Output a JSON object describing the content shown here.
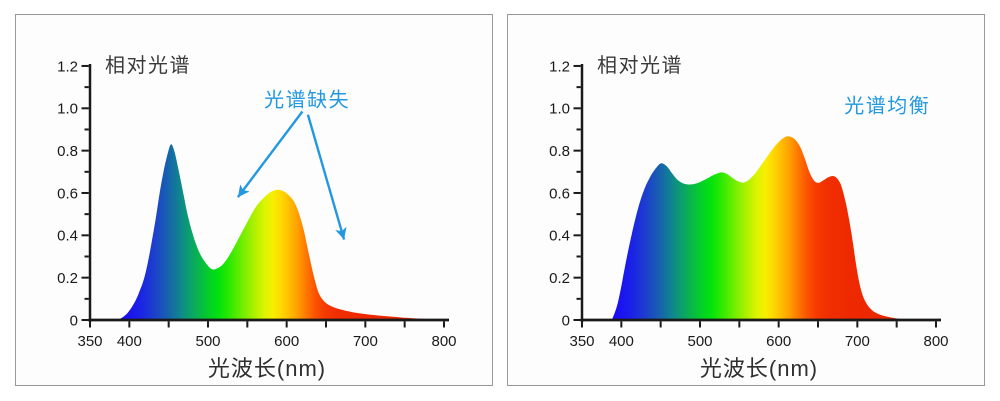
{
  "page": {
    "background": "#ffffff",
    "panel_background": "#fdfdfd",
    "panel_border": "#999999"
  },
  "axis": {
    "color": "#1a1a1a",
    "tick_label_color": "#1a1a1a",
    "tick_label_size": 15
  },
  "text": {
    "title_color": "#3a3a3a",
    "annotation_color": "#2298e0"
  },
  "spectrum_gradient": [
    {
      "wl": 350,
      "color": "#2004f8"
    },
    {
      "wl": 392,
      "color": "#1b0cf2"
    },
    {
      "wl": 412,
      "color": "#1b20e8"
    },
    {
      "wl": 432,
      "color": "#1c40cc"
    },
    {
      "wl": 452,
      "color": "#1668a8"
    },
    {
      "wl": 468,
      "color": "#0e8e84"
    },
    {
      "wl": 483,
      "color": "#09ac5a"
    },
    {
      "wl": 498,
      "color": "#05c930"
    },
    {
      "wl": 513,
      "color": "#01e20e"
    },
    {
      "wl": 528,
      "color": "#30e900"
    },
    {
      "wl": 544,
      "color": "#72ee00"
    },
    {
      "wl": 559,
      "color": "#aef000"
    },
    {
      "wl": 572,
      "color": "#dcf400"
    },
    {
      "wl": 583,
      "color": "#f8ee00"
    },
    {
      "wl": 593,
      "color": "#ffd800"
    },
    {
      "wl": 603,
      "color": "#ffbe00"
    },
    {
      "wl": 613,
      "color": "#ffa200"
    },
    {
      "wl": 623,
      "color": "#ff7e00"
    },
    {
      "wl": 635,
      "color": "#fc5600"
    },
    {
      "wl": 648,
      "color": "#f63a00"
    },
    {
      "wl": 663,
      "color": "#f12e00"
    },
    {
      "wl": 690,
      "color": "#ee2900"
    },
    {
      "wl": 800,
      "color": "#e82400"
    }
  ],
  "chart_data": [
    {
      "type": "area",
      "title": "相对光谱",
      "xlabel": "光波长(nm)",
      "xlim": [
        350,
        800
      ],
      "ylim": [
        0,
        1.2
      ],
      "x_tick_step": 50,
      "x_tick_labels": [
        350,
        400,
        500,
        600,
        700,
        800
      ],
      "y_tick_step_minor": 0.1,
      "y_tick_labels": [
        "0",
        "0.2",
        "0.4",
        "0.6",
        "0.8",
        "1.0",
        "1.2"
      ],
      "annotation": {
        "text": "光谱缺失",
        "x": 626,
        "y": 1.05
      },
      "arrows": [
        {
          "from": [
            620,
            0.985
          ],
          "to": [
            538,
            0.58
          ]
        },
        {
          "from": [
            627,
            0.97
          ],
          "to": [
            673,
            0.38
          ]
        }
      ],
      "points": [
        [
          385,
          0
        ],
        [
          391,
          0.012
        ],
        [
          397,
          0.03
        ],
        [
          403,
          0.06
        ],
        [
          409,
          0.1
        ],
        [
          414,
          0.145
        ],
        [
          419,
          0.2
        ],
        [
          424,
          0.28
        ],
        [
          429,
          0.38
        ],
        [
          434,
          0.49
        ],
        [
          439,
          0.61
        ],
        [
          444,
          0.71
        ],
        [
          449,
          0.79
        ],
        [
          453,
          0.83
        ],
        [
          457,
          0.8
        ],
        [
          462,
          0.72
        ],
        [
          468,
          0.61
        ],
        [
          474,
          0.5
        ],
        [
          481,
          0.4
        ],
        [
          489,
          0.32
        ],
        [
          497,
          0.27
        ],
        [
          505,
          0.24
        ],
        [
          513,
          0.246
        ],
        [
          521,
          0.272
        ],
        [
          531,
          0.33
        ],
        [
          541,
          0.4
        ],
        [
          551,
          0.47
        ],
        [
          561,
          0.535
        ],
        [
          571,
          0.578
        ],
        [
          580,
          0.605
        ],
        [
          588,
          0.615
        ],
        [
          596,
          0.608
        ],
        [
          604,
          0.585
        ],
        [
          610,
          0.555
        ],
        [
          616,
          0.5
        ],
        [
          622,
          0.42
        ],
        [
          628,
          0.315
        ],
        [
          634,
          0.215
        ],
        [
          640,
          0.135
        ],
        [
          646,
          0.095
        ],
        [
          653,
          0.072
        ],
        [
          662,
          0.057
        ],
        [
          675,
          0.044
        ],
        [
          692,
          0.032
        ],
        [
          712,
          0.023
        ],
        [
          735,
          0.015
        ],
        [
          760,
          0.008
        ],
        [
          782,
          0.004
        ],
        [
          800,
          0.001
        ]
      ]
    },
    {
      "type": "area",
      "title": "相对光谱",
      "xlabel": "光波长(nm)",
      "xlim": [
        350,
        800
      ],
      "ylim": [
        0,
        1.2
      ],
      "x_tick_step": 50,
      "x_tick_labels": [
        350,
        400,
        500,
        600,
        700,
        800
      ],
      "y_tick_step_minor": 0.1,
      "y_tick_labels": [
        "0",
        "0.2",
        "0.4",
        "0.6",
        "0.8",
        "1.0",
        "1.2"
      ],
      "annotation": {
        "text": "光谱均衡",
        "x": 738,
        "y": 1.02
      },
      "arrows": [],
      "points": [
        [
          388,
          0
        ],
        [
          394,
          0.06
        ],
        [
          399,
          0.14
        ],
        [
          404,
          0.24
        ],
        [
          410,
          0.35
        ],
        [
          416,
          0.45
        ],
        [
          423,
          0.55
        ],
        [
          430,
          0.625
        ],
        [
          438,
          0.685
        ],
        [
          445,
          0.722
        ],
        [
          451,
          0.74
        ],
        [
          458,
          0.725
        ],
        [
          465,
          0.69
        ],
        [
          472,
          0.66
        ],
        [
          479,
          0.645
        ],
        [
          487,
          0.64
        ],
        [
          495,
          0.645
        ],
        [
          503,
          0.657
        ],
        [
          511,
          0.672
        ],
        [
          519,
          0.688
        ],
        [
          527,
          0.697
        ],
        [
          534,
          0.69
        ],
        [
          541,
          0.672
        ],
        [
          548,
          0.656
        ],
        [
          555,
          0.649
        ],
        [
          562,
          0.662
        ],
        [
          570,
          0.692
        ],
        [
          578,
          0.733
        ],
        [
          586,
          0.775
        ],
        [
          594,
          0.815
        ],
        [
          602,
          0.848
        ],
        [
          609,
          0.866
        ],
        [
          615,
          0.866
        ],
        [
          621,
          0.852
        ],
        [
          627,
          0.82
        ],
        [
          633,
          0.765
        ],
        [
          639,
          0.7
        ],
        [
          645,
          0.658
        ],
        [
          651,
          0.648
        ],
        [
          657,
          0.66
        ],
        [
          663,
          0.674
        ],
        [
          669,
          0.68
        ],
        [
          674,
          0.67
        ],
        [
          679,
          0.64
        ],
        [
          684,
          0.575
        ],
        [
          689,
          0.485
        ],
        [
          694,
          0.375
        ],
        [
          698,
          0.27
        ],
        [
          702,
          0.185
        ],
        [
          706,
          0.125
        ],
        [
          711,
          0.082
        ],
        [
          717,
          0.052
        ],
        [
          724,
          0.033
        ],
        [
          733,
          0.02
        ],
        [
          743,
          0.012
        ],
        [
          752,
          0.006
        ],
        [
          760,
          0.002
        ]
      ]
    }
  ]
}
